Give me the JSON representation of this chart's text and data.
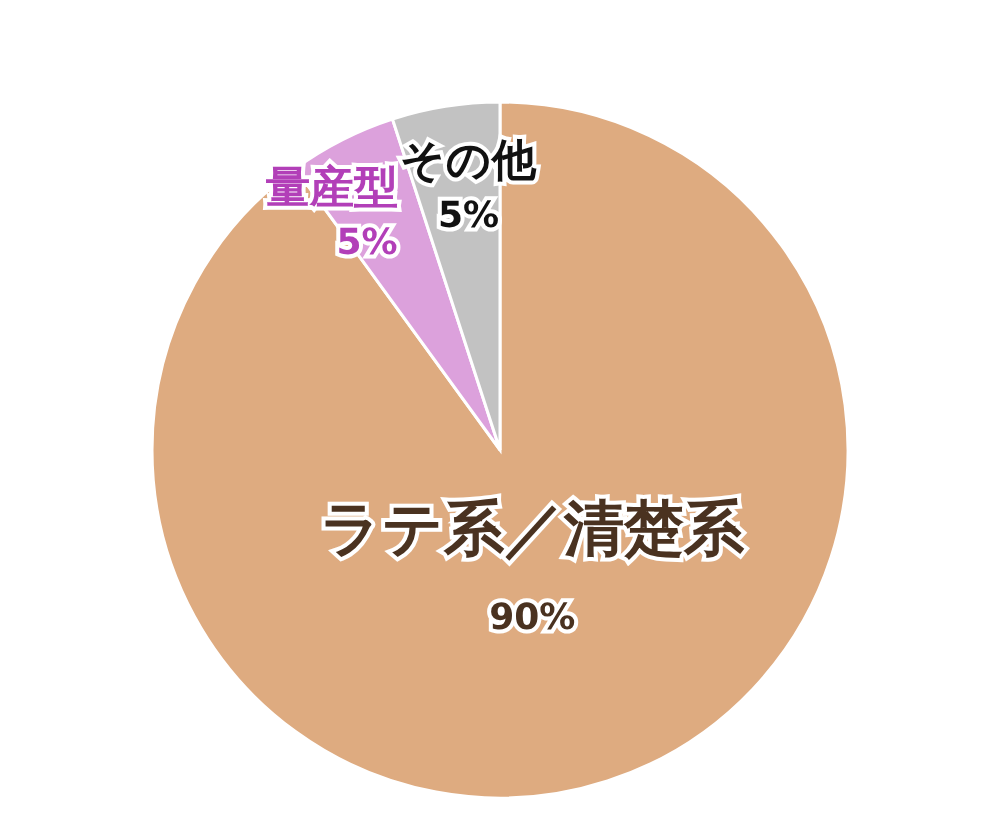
{
  "chart_data": {
    "type": "pie",
    "categories": [
      "ラテ系／清楚系",
      "量産型",
      "その他"
    ],
    "values": [
      90,
      5,
      5
    ],
    "colors": [
      "#deab80",
      "#dca1dc",
      "#c2c2c2"
    ],
    "value_labels": [
      "90%",
      "5%",
      "5%"
    ]
  }
}
